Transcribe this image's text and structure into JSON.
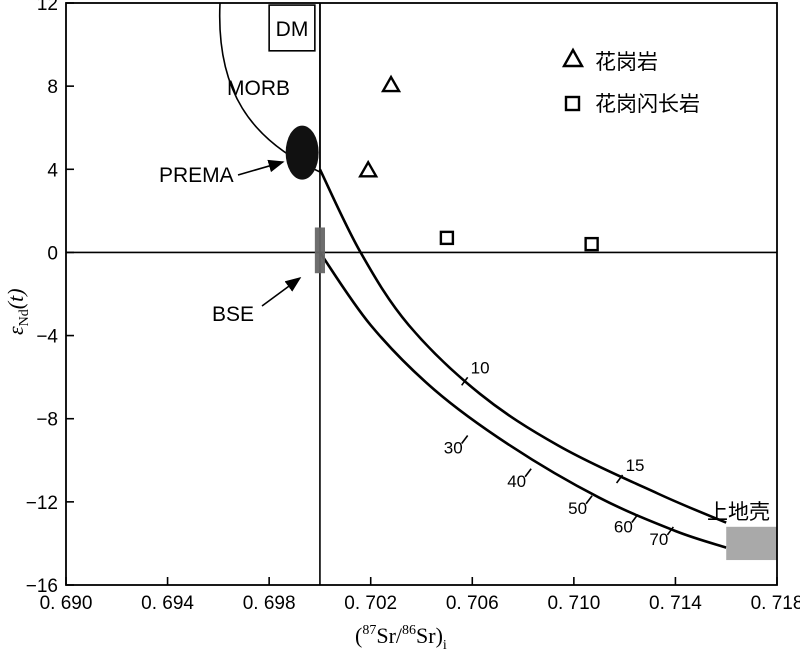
{
  "chart_data": {
    "type": "scatter",
    "title": "",
    "xlabel": {
      "pre_super": "87",
      "a": "Sr/",
      "mid_super": "86",
      "b": "Sr)",
      "sub": "i",
      "open": "("
    },
    "ylabel": {
      "eps": "ε",
      "sub": "Nd",
      "rest": "(t)"
    },
    "xlim": [
      0.69,
      0.718
    ],
    "ylim": [
      -16,
      12
    ],
    "xticks": [
      0.69,
      0.694,
      0.698,
      0.702,
      0.706,
      0.71,
      0.714,
      0.718
    ],
    "xtick_labels": [
      "0. 690",
      "0. 694",
      "0. 698",
      "0. 702",
      "0. 706",
      "0. 710",
      "0. 714",
      "0. 718"
    ],
    "yticks": [
      12,
      8,
      4,
      0,
      -4,
      -8,
      -12,
      -16
    ],
    "ytick_labels": [
      "12",
      "8",
      "4",
      "0",
      "−4",
      "−8",
      "−12",
      "−16"
    ],
    "reference_lines": {
      "x": 0.7,
      "y": 0
    },
    "series": [
      {
        "name": "花岗岩",
        "marker": "triangle",
        "points": [
          {
            "x": 0.7028,
            "y": 8.1
          },
          {
            "x": 0.7019,
            "y": 4.0
          }
        ]
      },
      {
        "name": "花岗闪长岩",
        "marker": "square",
        "points": [
          {
            "x": 0.705,
            "y": 0.7
          },
          {
            "x": 0.7107,
            "y": 0.4
          }
        ]
      }
    ],
    "regions": [
      {
        "name": "DM",
        "type": "box",
        "x": [
          0.698,
          0.6998
        ],
        "y": [
          9.7,
          11.9
        ],
        "fill": "none"
      },
      {
        "name": "MORB",
        "type": "field",
        "fill": "none"
      },
      {
        "name": "PREMA",
        "type": "ellipse",
        "cx": 0.6993,
        "cy": 4.8,
        "rx": 0.00065,
        "ry": 1.3,
        "fill": "#111111"
      },
      {
        "name": "BSE",
        "type": "box",
        "x": [
          0.6998,
          0.7002
        ],
        "y": [
          -1.0,
          1.2
        ],
        "fill": "#666666"
      },
      {
        "name": "上地壳",
        "type": "box",
        "x": [
          0.716,
          0.718
        ],
        "y": [
          -14.8,
          -13.2
        ],
        "fill": "#a9a9a9"
      }
    ],
    "mixing_curves": [
      {
        "name": "upper",
        "points": [
          [
            0.7,
            4.0
          ],
          [
            0.7016,
            0.0
          ],
          [
            0.7035,
            -3.5
          ],
          [
            0.7063,
            -6.8
          ],
          [
            0.7094,
            -9.3
          ],
          [
            0.7133,
            -11.6
          ],
          [
            0.716,
            -13.0
          ]
        ]
      },
      {
        "name": "lower",
        "points": [
          [
            0.7,
            0.0
          ],
          [
            0.702,
            -3.5
          ],
          [
            0.7045,
            -6.6
          ],
          [
            0.7075,
            -9.3
          ],
          [
            0.711,
            -11.8
          ],
          [
            0.714,
            -13.4
          ],
          [
            0.716,
            -14.2
          ]
        ]
      }
    ],
    "curve_ticks": [
      {
        "label": "10",
        "x": 0.7057,
        "y": -6.2,
        "curve": "upper"
      },
      {
        "label": "15",
        "x": 0.7118,
        "y": -10.9,
        "curve": "upper"
      },
      {
        "label": "30",
        "x": 0.7057,
        "y": -9.0,
        "curve": "lower"
      },
      {
        "label": "40",
        "x": 0.7082,
        "y": -10.6,
        "curve": "lower"
      },
      {
        "label": "50",
        "x": 0.7106,
        "y": -11.9,
        "curve": "lower"
      },
      {
        "label": "60",
        "x": 0.7124,
        "y": -12.8,
        "curve": "lower"
      },
      {
        "label": "70",
        "x": 0.7138,
        "y": -13.4,
        "curve": "lower"
      }
    ],
    "annotations": [
      {
        "text": "PREMA",
        "arrow_to": "PREMA"
      },
      {
        "text": "BSE",
        "arrow_to": "BSE"
      },
      {
        "text": "上地壳"
      }
    ],
    "legend": {
      "position": "top-right",
      "entries": [
        "花岗岩",
        "花岗闪长岩"
      ]
    }
  }
}
